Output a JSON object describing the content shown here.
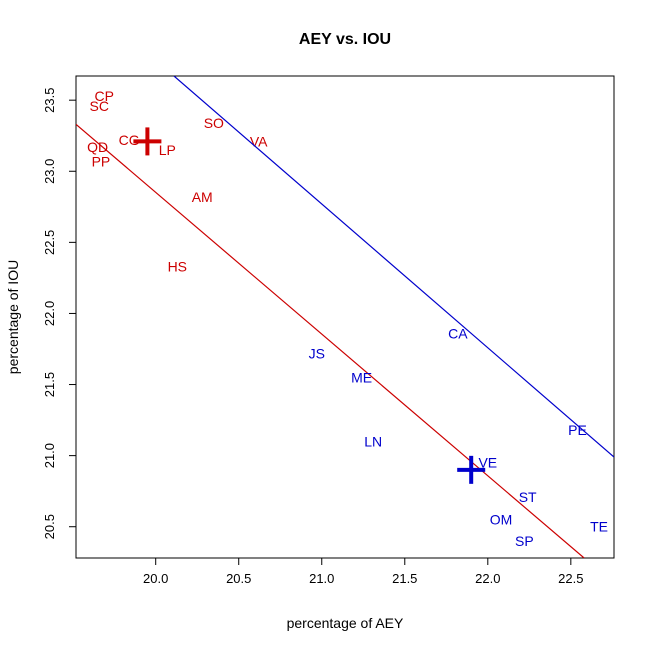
{
  "chart_data": {
    "type": "scatter",
    "title": "AEY vs. IOU",
    "xlabel": "percentage of AEY",
    "ylabel": "percentage of IOU",
    "xlim": [
      19.52,
      22.76
    ],
    "ylim": [
      20.28,
      23.67
    ],
    "xticks": [
      "20.0",
      "20.5",
      "21.0",
      "21.5",
      "22.0",
      "22.5"
    ],
    "yticks": [
      "20.5",
      "21.0",
      "21.5",
      "22.0",
      "22.5",
      "23.0",
      "23.5"
    ],
    "grid": false,
    "legend": "none",
    "series": [
      {
        "color": "#cc0000",
        "points": [
          {
            "label": "CP",
            "x": 19.69,
            "y": 23.53
          },
          {
            "label": "SC",
            "x": 19.66,
            "y": 23.46
          },
          {
            "label": "CG",
            "x": 19.84,
            "y": 23.22
          },
          {
            "label": "LP",
            "x": 20.07,
            "y": 23.15
          },
          {
            "label": "SO",
            "x": 20.35,
            "y": 23.34
          },
          {
            "label": "VA",
            "x": 20.62,
            "y": 23.21
          },
          {
            "label": "QD",
            "x": 19.65,
            "y": 23.17
          },
          {
            "label": "PP",
            "x": 19.67,
            "y": 23.07
          },
          {
            "label": "AM",
            "x": 20.28,
            "y": 22.82
          },
          {
            "label": "HS",
            "x": 20.13,
            "y": 22.33
          }
        ],
        "centroid": {
          "x": 19.95,
          "y": 23.21
        },
        "line": {
          "x1": 19.52,
          "y1": 23.33,
          "x2": 22.58,
          "y2": 20.28
        }
      },
      {
        "color": "#0000cc",
        "points": [
          {
            "label": "CA",
            "x": 21.82,
            "y": 21.86
          },
          {
            "label": "JS",
            "x": 20.97,
            "y": 21.72
          },
          {
            "label": "ME",
            "x": 21.24,
            "y": 21.55
          },
          {
            "label": "LN",
            "x": 21.31,
            "y": 21.1
          },
          {
            "label": "VE",
            "x": 22.0,
            "y": 20.95
          },
          {
            "label": "PE",
            "x": 22.54,
            "y": 21.18
          },
          {
            "label": "ST",
            "x": 22.24,
            "y": 20.71
          },
          {
            "label": "OM",
            "x": 22.08,
            "y": 20.55
          },
          {
            "label": "SP",
            "x": 22.22,
            "y": 20.4
          },
          {
            "label": "TE",
            "x": 22.67,
            "y": 20.5
          }
        ],
        "centroid": {
          "x": 21.9,
          "y": 20.9
        },
        "line": {
          "x1": 20.11,
          "y1": 23.67,
          "x2": 22.76,
          "y2": 20.99
        }
      }
    ]
  }
}
